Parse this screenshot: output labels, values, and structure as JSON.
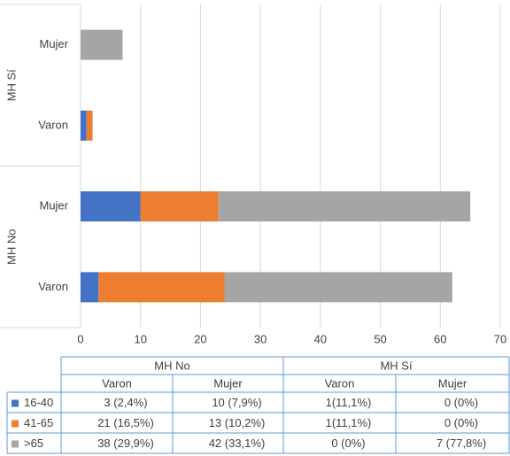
{
  "chart_data": {
    "type": "bar",
    "orientation": "horizontal",
    "stacked": true,
    "groups": [
      {
        "name": "MH No",
        "categories": [
          "Varon",
          "Mujer"
        ]
      },
      {
        "name": "MH Sí",
        "categories": [
          "Varon",
          "Mujer"
        ]
      }
    ],
    "series": [
      {
        "name": "16-40",
        "color": "#4472c4",
        "values": [
          3,
          10,
          1,
          0
        ],
        "value_labels": [
          "3 (2,4%)",
          "10 (7,9%)",
          "1(11,1%)",
          "0 (0%)"
        ]
      },
      {
        "name": "41-65",
        "color": "#ed7d31",
        "values": [
          21,
          13,
          1,
          0
        ],
        "value_labels": [
          "21 (16,5%)",
          "13 (10,2%)",
          "1(11,1%)",
          "0 (0%)"
        ]
      },
      {
        "name": ">65",
        "color": "#a5a5a5",
        "values": [
          38,
          42,
          0,
          7
        ],
        "value_labels": [
          "38 (29,9%)",
          "42 (33,1%)",
          "0 (0%)",
          "7 (77,8%)"
        ]
      }
    ],
    "xlim": [
      0,
      70
    ],
    "xticks": [
      0,
      10,
      20,
      30,
      40,
      50,
      60,
      70
    ],
    "grid": true
  }
}
